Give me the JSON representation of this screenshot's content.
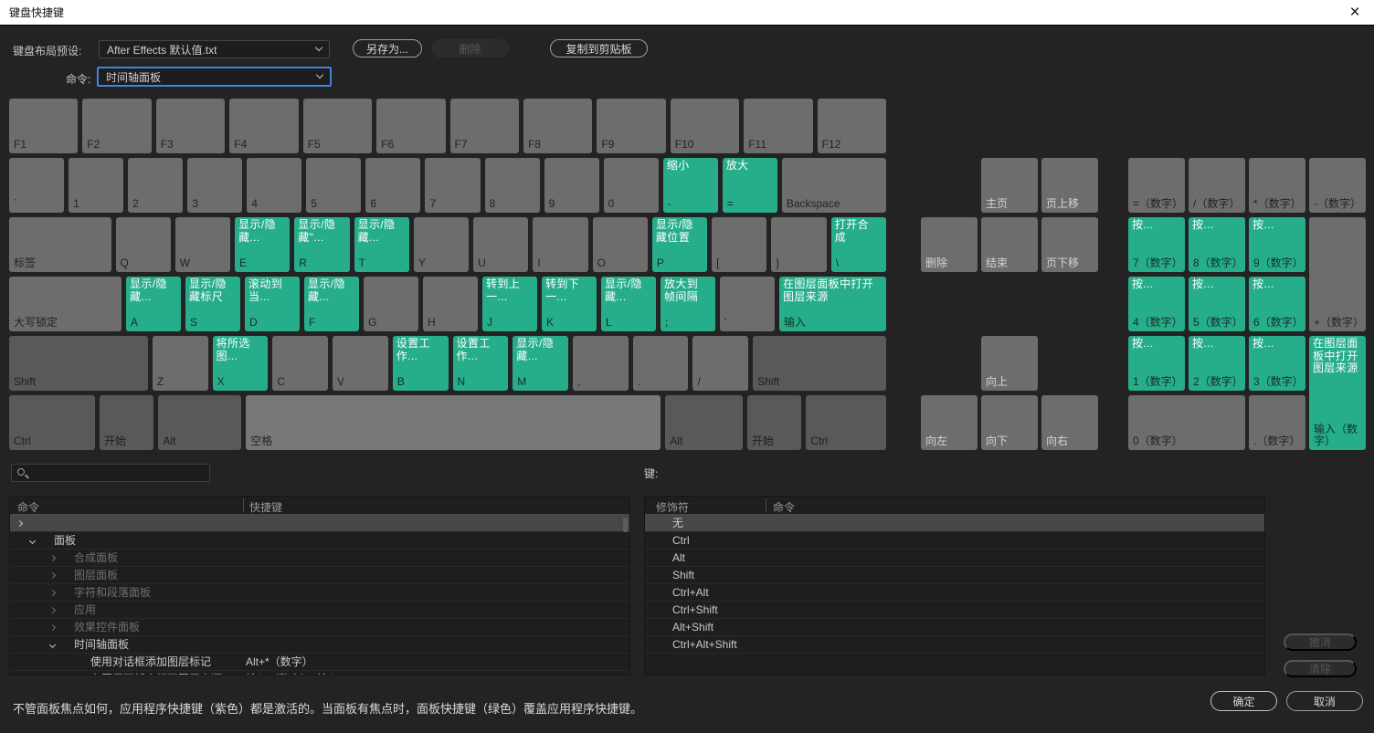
{
  "window": {
    "title": "键盘快捷键",
    "close_glyph": "×"
  },
  "colors": {
    "panel_green": "#26ae8b",
    "focus_blue": "#3d86dd",
    "key_gray": "#6d6d6d",
    "modifier_gray": "#595959"
  },
  "toolbar": {
    "preset_label": "键盘布局预设:",
    "preset_value": "After Effects 默认值.txt",
    "save_as_label": "另存为...",
    "delete_label": "删除",
    "copy_label": "复制到剪贴板",
    "command_label": "命令:",
    "command_value": "时间轴面板"
  },
  "keyboard": {
    "rows": [
      [
        {
          "k": "F1",
          "t": "g",
          "w": 1
        },
        {
          "k": "F2",
          "t": "g",
          "w": 1
        },
        {
          "k": "F3",
          "t": "g",
          "w": 1
        },
        {
          "k": "F4",
          "t": "g",
          "w": 1
        },
        {
          "k": "F5",
          "t": "g",
          "w": 1
        },
        {
          "k": "F6",
          "t": "g",
          "w": 1
        },
        {
          "k": "F7",
          "t": "g",
          "w": 1
        },
        {
          "k": "F8",
          "t": "g",
          "w": 1
        },
        {
          "k": "F9",
          "t": "g",
          "w": 1
        },
        {
          "k": "F10",
          "t": "g",
          "w": 1
        },
        {
          "k": "F11",
          "t": "g",
          "w": 1
        },
        {
          "k": "F12",
          "t": "g",
          "w": 1
        }
      ],
      [
        {
          "k": "`",
          "t": "g",
          "w": 1
        },
        {
          "k": "1",
          "t": "g",
          "w": 1
        },
        {
          "k": "2",
          "t": "g",
          "w": 1
        },
        {
          "k": "3",
          "t": "g",
          "w": 1
        },
        {
          "k": "4",
          "t": "g",
          "w": 1
        },
        {
          "k": "5",
          "t": "g",
          "w": 1
        },
        {
          "k": "6",
          "t": "g",
          "w": 1
        },
        {
          "k": "7",
          "t": "g",
          "w": 1
        },
        {
          "k": "8",
          "t": "g",
          "w": 1
        },
        {
          "k": "9",
          "t": "g",
          "w": 1
        },
        {
          "k": "0",
          "t": "g",
          "w": 1
        },
        {
          "k": "-",
          "t": "p",
          "c": "缩小",
          "w": 1
        },
        {
          "k": "=",
          "t": "p",
          "c": "放大",
          "w": 1
        },
        {
          "k": "Backspace",
          "t": "g",
          "w": 1.9
        }
      ],
      [
        {
          "k": "标签",
          "t": "g",
          "w": 1.85
        },
        {
          "k": "Q",
          "t": "g",
          "w": 1
        },
        {
          "k": "W",
          "t": "g",
          "w": 1
        },
        {
          "k": "E",
          "t": "p",
          "c": "显示/隐藏...",
          "w": 1
        },
        {
          "k": "R",
          "t": "p",
          "c": "显示/隐藏\"...",
          "w": 1
        },
        {
          "k": "T",
          "t": "p",
          "c": "显示/隐藏...",
          "w": 1
        },
        {
          "k": "Y",
          "t": "g",
          "w": 1
        },
        {
          "k": "U",
          "t": "g",
          "w": 1
        },
        {
          "k": "I",
          "t": "g",
          "w": 1
        },
        {
          "k": "O",
          "t": "g",
          "w": 1
        },
        {
          "k": "P",
          "t": "p",
          "c": "显示/隐藏位置",
          "w": 1
        },
        {
          "k": "[",
          "t": "g",
          "w": 1
        },
        {
          "k": "]",
          "t": "g",
          "w": 1
        },
        {
          "k": "\\",
          "t": "p",
          "c": "打开合成",
          "w": 1
        }
      ],
      [
        {
          "k": "大写锁定",
          "t": "g",
          "w": 2.05
        },
        {
          "k": "A",
          "t": "p",
          "c": "显示/隐藏...",
          "w": 1
        },
        {
          "k": "S",
          "t": "p",
          "c": "显示/隐藏标尺",
          "w": 1
        },
        {
          "k": "D",
          "t": "p",
          "c": "滚动到当...",
          "w": 1
        },
        {
          "k": "F",
          "t": "p",
          "c": "显示/隐藏...",
          "w": 1
        },
        {
          "k": "G",
          "t": "g",
          "w": 1
        },
        {
          "k": "H",
          "t": "g",
          "w": 1
        },
        {
          "k": "J",
          "t": "p",
          "c": "转到上一...",
          "w": 1
        },
        {
          "k": "K",
          "t": "p",
          "c": "转到下一...",
          "w": 1
        },
        {
          "k": "L",
          "t": "p",
          "c": "显示/隐藏...",
          "w": 1
        },
        {
          "k": ";",
          "t": "p",
          "c": "放大到帧间隔",
          "w": 1
        },
        {
          "k": "'",
          "t": "g",
          "w": 1
        },
        {
          "k": "输入",
          "t": "p",
          "c": "在图层面板中打开图层来源",
          "w": 1.95
        }
      ],
      [
        {
          "k": "Shift",
          "t": "m",
          "w": 2.5
        },
        {
          "k": "Z",
          "t": "g",
          "w": 1
        },
        {
          "k": "X",
          "t": "p",
          "c": "将所选图...",
          "w": 1
        },
        {
          "k": "C",
          "t": "g",
          "w": 1
        },
        {
          "k": "V",
          "t": "g",
          "w": 1
        },
        {
          "k": "B",
          "t": "p",
          "c": "设置工作...",
          "w": 1
        },
        {
          "k": "N",
          "t": "p",
          "c": "设置工作...",
          "w": 1
        },
        {
          "k": "M",
          "t": "p",
          "c": "显示/隐藏...",
          "w": 1
        },
        {
          "k": ",",
          "t": "g",
          "w": 1
        },
        {
          "k": ".",
          "t": "g",
          "w": 1
        },
        {
          "k": "/",
          "t": "g",
          "w": 1
        },
        {
          "k": "Shift",
          "t": "m",
          "w": 2.4
        }
      ],
      [
        {
          "k": "Ctrl",
          "t": "m",
          "w": 1.5
        },
        {
          "k": "开始",
          "t": "m",
          "w": 0.95
        },
        {
          "k": "Alt",
          "t": "m",
          "w": 1.45
        },
        {
          "k": "空格",
          "t": "s",
          "w": 7.25
        },
        {
          "k": "Alt",
          "t": "m",
          "w": 1.35
        },
        {
          "k": "开始",
          "t": "m",
          "w": 0.95
        },
        {
          "k": "Ctrl",
          "t": "m",
          "w": 1.4
        }
      ]
    ]
  },
  "nav_cluster": {
    "keys": [
      {
        "k": "主页",
        "t": "n",
        "col": 2,
        "row": 2
      },
      {
        "k": "页上移",
        "t": "n",
        "col": 3,
        "row": 2
      },
      {
        "k": "删除",
        "t": "n",
        "col": 1,
        "row": 3
      },
      {
        "k": "结束",
        "t": "n",
        "col": 2,
        "row": 3
      },
      {
        "k": "页下移",
        "t": "n",
        "col": 3,
        "row": 3
      },
      {
        "k": "向上",
        "t": "n",
        "col": 2,
        "row": 5
      },
      {
        "k": "向左",
        "t": "n",
        "col": 1,
        "row": 6
      },
      {
        "k": "向下",
        "t": "n",
        "col": 2,
        "row": 6
      },
      {
        "k": "向右",
        "t": "n",
        "col": 3,
        "row": 6
      }
    ]
  },
  "numpad": {
    "keys": [
      {
        "k": "=（数字）",
        "t": "g",
        "col": 1,
        "row": 2
      },
      {
        "k": "/（数字）",
        "t": "g",
        "col": 2,
        "row": 2
      },
      {
        "k": "*（数字）",
        "t": "g",
        "col": 3,
        "row": 2
      },
      {
        "k": "-（数字）",
        "t": "g",
        "col": 4,
        "row": 2
      },
      {
        "k": "7（数字）",
        "t": "p",
        "c": "按...",
        "col": 1,
        "row": 3
      },
      {
        "k": "8（数字）",
        "t": "p",
        "c": "按...",
        "col": 2,
        "row": 3
      },
      {
        "k": "9（数字）",
        "t": "p",
        "c": "按...",
        "col": 3,
        "row": 3
      },
      {
        "k": "+（数字）",
        "t": "g",
        "col": 4,
        "row": 3,
        "rowspan": 2
      },
      {
        "k": "4（数字）",
        "t": "p",
        "c": "按...",
        "col": 1,
        "row": 4
      },
      {
        "k": "5（数字）",
        "t": "p",
        "c": "按...",
        "col": 2,
        "row": 4
      },
      {
        "k": "6（数字）",
        "t": "p",
        "c": "按...",
        "col": 3,
        "row": 4
      },
      {
        "k": "1（数字）",
        "t": "p",
        "c": "按...",
        "col": 1,
        "row": 5
      },
      {
        "k": "2（数字）",
        "t": "p",
        "c": "按...",
        "col": 2,
        "row": 5
      },
      {
        "k": "3（数字）",
        "t": "p",
        "c": "按...",
        "col": 3,
        "row": 5
      },
      {
        "k": "输入（数字）",
        "t": "p",
        "c": "在图层面板中打开图层来源",
        "col": 4,
        "row": 5,
        "rowspan": 2
      },
      {
        "k": "0（数字）",
        "t": "g",
        "col": 1,
        "row": 6,
        "colspan": 2
      },
      {
        "k": ".（数字）",
        "t": "g",
        "col": 3,
        "row": 6
      }
    ]
  },
  "bottom": {
    "key_label": "键:",
    "left_table": {
      "headers": [
        "命令",
        "快捷键"
      ],
      "rows": [
        {
          "level": 0,
          "chev": "right",
          "label": "",
          "selected": true,
          "dim": false
        },
        {
          "level": 1,
          "chev": "down",
          "label": "面板",
          "dim": false
        },
        {
          "level": 2,
          "chev": "right",
          "label": "合成面板",
          "dim": true
        },
        {
          "level": 2,
          "chev": "right",
          "label": "图层面板",
          "dim": true
        },
        {
          "level": 2,
          "chev": "right",
          "label": "字符和段落面板",
          "dim": true
        },
        {
          "level": 2,
          "chev": "right",
          "label": "应用",
          "dim": true
        },
        {
          "level": 2,
          "chev": "right",
          "label": "效果控件面板",
          "dim": true
        },
        {
          "level": 2,
          "chev": "down",
          "label": "时间轴面板",
          "dim": false
        },
        {
          "level": 3,
          "chev": null,
          "label": "使用对话框添加图层标记",
          "shortcut": "Alt+*（数字）",
          "dim": false
        },
        {
          "level": 3,
          "chev": null,
          "label": "在图层面板中打开图层来源",
          "shortcut": "输入（数字）、输入",
          "dim": false
        }
      ]
    },
    "right_table": {
      "headers": [
        "修饰符",
        "命令"
      ],
      "rows": [
        {
          "label": "无",
          "selected": true
        },
        {
          "label": "Ctrl"
        },
        {
          "label": "Alt"
        },
        {
          "label": "Shift"
        },
        {
          "label": "Ctrl+Alt"
        },
        {
          "label": "Ctrl+Shift"
        },
        {
          "label": "Alt+Shift"
        },
        {
          "label": "Ctrl+Alt+Shift"
        }
      ]
    },
    "undo_label": "撤消",
    "clear_label": "清除"
  },
  "footer": {
    "note": "不管面板焦点如何，应用程序快捷键（紫色）都是激活的。当面板有焦点时，面板快捷键（绿色）覆盖应用程序快捷键。",
    "ok_label": "确定",
    "cancel_label": "取消"
  }
}
